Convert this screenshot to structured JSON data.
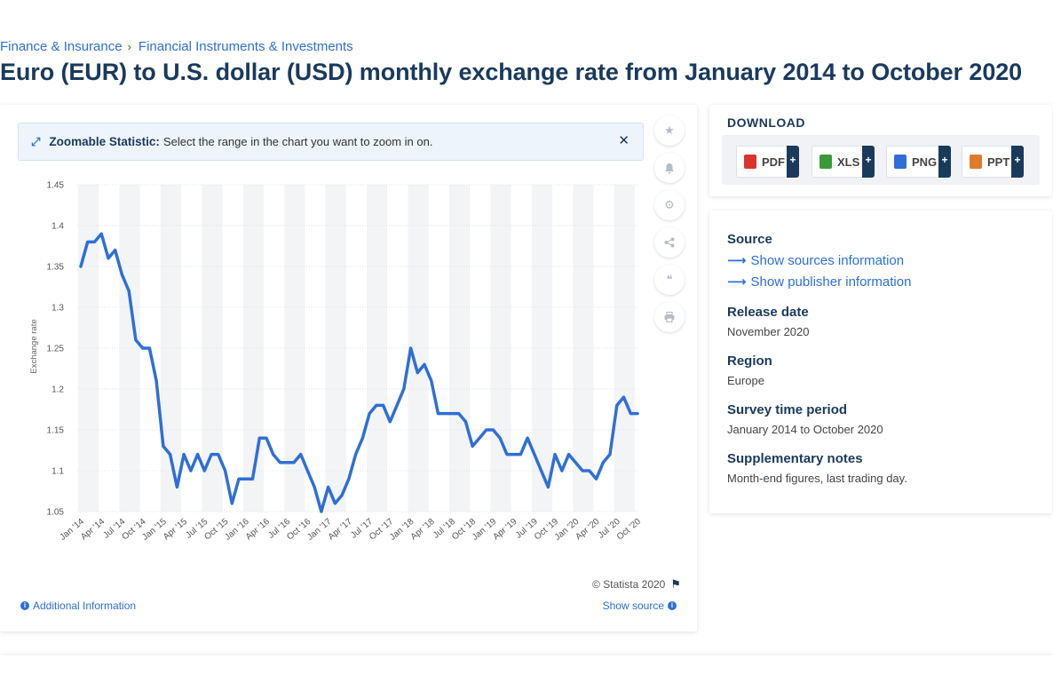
{
  "breadcrumb": {
    "item1": "Finance & Insurance",
    "sep": "›",
    "item2": "Financial Instruments & Investments"
  },
  "page_title": "Euro (EUR) to U.S. dollar (USD) monthly exchange rate from January 2014 to October 2020",
  "zoom_banner": {
    "title": "Zoomable Statistic:",
    "text": "Select the range in the chart you want to zoom in on.",
    "close": "✕"
  },
  "tools": {
    "star": "★",
    "bell": "🔔",
    "gear": "⚙",
    "share": "⋖",
    "quote": "❝",
    "print": "⎙"
  },
  "footer": {
    "credit": "© Statista 2020",
    "additional_info": "Additional Information",
    "show_source": "Show source"
  },
  "download": {
    "title": "DOWNLOAD",
    "buttons": [
      {
        "label": "PDF",
        "color": "#d9342b"
      },
      {
        "label": "XLS",
        "color": "#3a9a3a"
      },
      {
        "label": "PNG",
        "color": "#2d6fd6"
      },
      {
        "label": "PPT",
        "color": "#e07a2b"
      }
    ],
    "plus": "+"
  },
  "info": {
    "source_label": "Source",
    "source_link": "Show sources information",
    "publisher_link": "Show publisher information",
    "release_label": "Release date",
    "release_value": "November 2020",
    "region_label": "Region",
    "region_value": "Europe",
    "period_label": "Survey time period",
    "period_value": "January 2014 to October 2020",
    "notes_label": "Supplementary notes",
    "notes_value": "Month-end figures, last trading day."
  },
  "colors": {
    "line": "#2f6fd6",
    "title": "#1a3a5c",
    "link": "#2d6fd6"
  },
  "chart_data": {
    "type": "line",
    "title": "",
    "ylabel": "Exchange rate",
    "xlabel": "",
    "ylim": [
      1.05,
      1.45
    ],
    "yticks": [
      "1.05",
      "1.1",
      "1.15",
      "1.2",
      "1.25",
      "1.3",
      "1.35",
      "1.4",
      "1.45"
    ],
    "grid": "vertical-bands",
    "xtick_labels": [
      "Jan '14",
      "Apr '14",
      "Jul '14",
      "Oct '14",
      "Jan '15",
      "Apr '15",
      "Jul '15",
      "Oct '15",
      "Jan '16",
      "Apr '16",
      "Jul '16",
      "Oct '16",
      "Jan '17",
      "Apr '17",
      "Jul '17",
      "Oct '17",
      "Jan '18",
      "Apr '18",
      "Jul '18",
      "Oct '18",
      "Jan '19",
      "Apr '19",
      "Jul '19",
      "Oct '19",
      "Jan '20",
      "Apr '20",
      "Jul '20",
      "Oct '20"
    ],
    "series": [
      {
        "values": [
          1.35,
          1.38,
          1.38,
          1.39,
          1.36,
          1.37,
          1.34,
          1.32,
          1.26,
          1.25,
          1.25,
          1.21,
          1.13,
          1.12,
          1.08,
          1.12,
          1.1,
          1.12,
          1.1,
          1.12,
          1.12,
          1.1,
          1.06,
          1.09,
          1.09,
          1.09,
          1.14,
          1.14,
          1.12,
          1.11,
          1.11,
          1.11,
          1.12,
          1.1,
          1.08,
          1.05,
          1.08,
          1.06,
          1.07,
          1.09,
          1.12,
          1.14,
          1.17,
          1.18,
          1.18,
          1.16,
          1.18,
          1.2,
          1.25,
          1.22,
          1.23,
          1.21,
          1.17,
          1.17,
          1.17,
          1.17,
          1.16,
          1.13,
          1.14,
          1.15,
          1.15,
          1.14,
          1.12,
          1.12,
          1.12,
          1.14,
          1.12,
          1.1,
          1.08,
          1.12,
          1.1,
          1.12,
          1.11,
          1.1,
          1.1,
          1.09,
          1.11,
          1.12,
          1.18,
          1.19,
          1.17,
          1.17
        ]
      }
    ]
  }
}
